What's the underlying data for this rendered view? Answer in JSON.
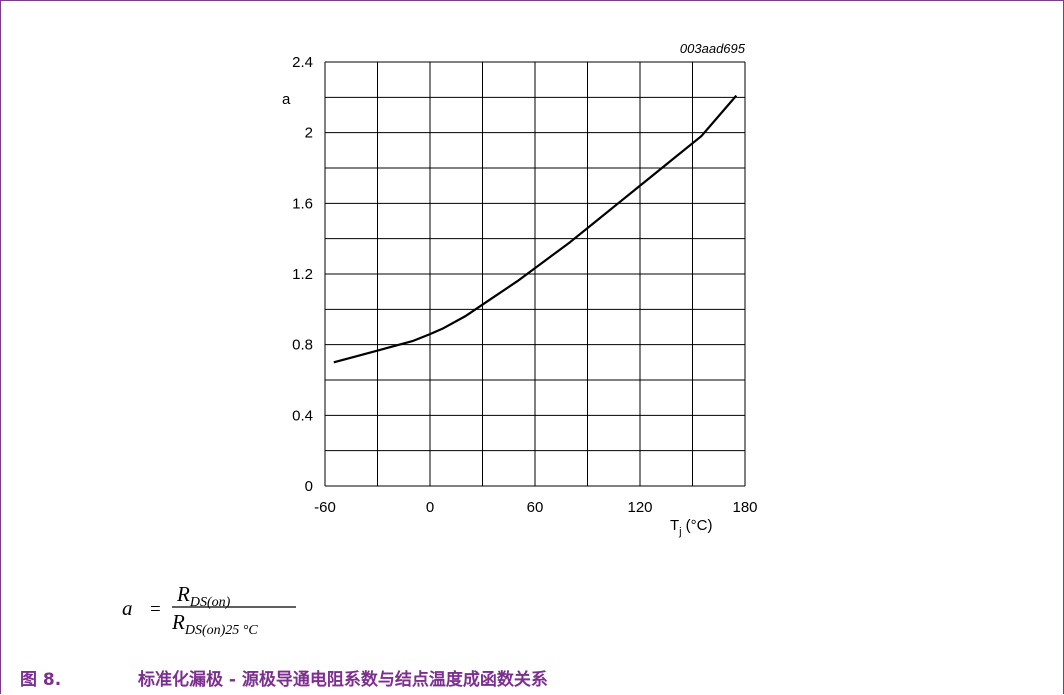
{
  "figure": {
    "code": "003aad695",
    "caption_number": "图 8.",
    "caption_text": "标准化漏极 - 源极导通电阻系数与结点温度成函数关系",
    "formula": {
      "lhs": "a",
      "eq": "=",
      "numerator": "R",
      "numerator_sub": "DS(on)",
      "denominator": "R",
      "denominator_sub": "DS(on)25 °C"
    }
  },
  "colors": {
    "frame": "#7a3d8c",
    "caption": "#7b2f8e",
    "grid": "#000000",
    "curve": "#000000"
  },
  "chart_data": {
    "type": "line",
    "title": "",
    "xlabel": "T",
    "xlabel_sub": "j",
    "xlabel_unit": "(°C)",
    "ylabel": "a",
    "xlim": [
      -60,
      180
    ],
    "ylim": [
      0,
      2.4
    ],
    "x_ticks": [
      -60,
      0,
      60,
      120,
      180
    ],
    "x_tick_labels": [
      "-60",
      "0",
      "60",
      "120",
      "180"
    ],
    "y_ticks": [
      0,
      0.4,
      0.8,
      1.2,
      1.6,
      2,
      2.4
    ],
    "y_tick_labels": [
      "0",
      "0.4",
      "0.8",
      "1.2",
      "1.6",
      "2",
      "2.4"
    ],
    "x_grid_step": 30,
    "y_grid_step": 0.2,
    "grid": true,
    "legend": "none",
    "series": [
      {
        "x": [
          -55,
          -40,
          -25,
          -10,
          0,
          7,
          20,
          35,
          50,
          65,
          80,
          95,
          110,
          125,
          140,
          155,
          175
        ],
        "y": [
          0.7,
          0.74,
          0.78,
          0.82,
          0.86,
          0.89,
          0.96,
          1.06,
          1.16,
          1.27,
          1.38,
          1.5,
          1.62,
          1.74,
          1.86,
          1.98,
          2.21
        ]
      }
    ]
  }
}
